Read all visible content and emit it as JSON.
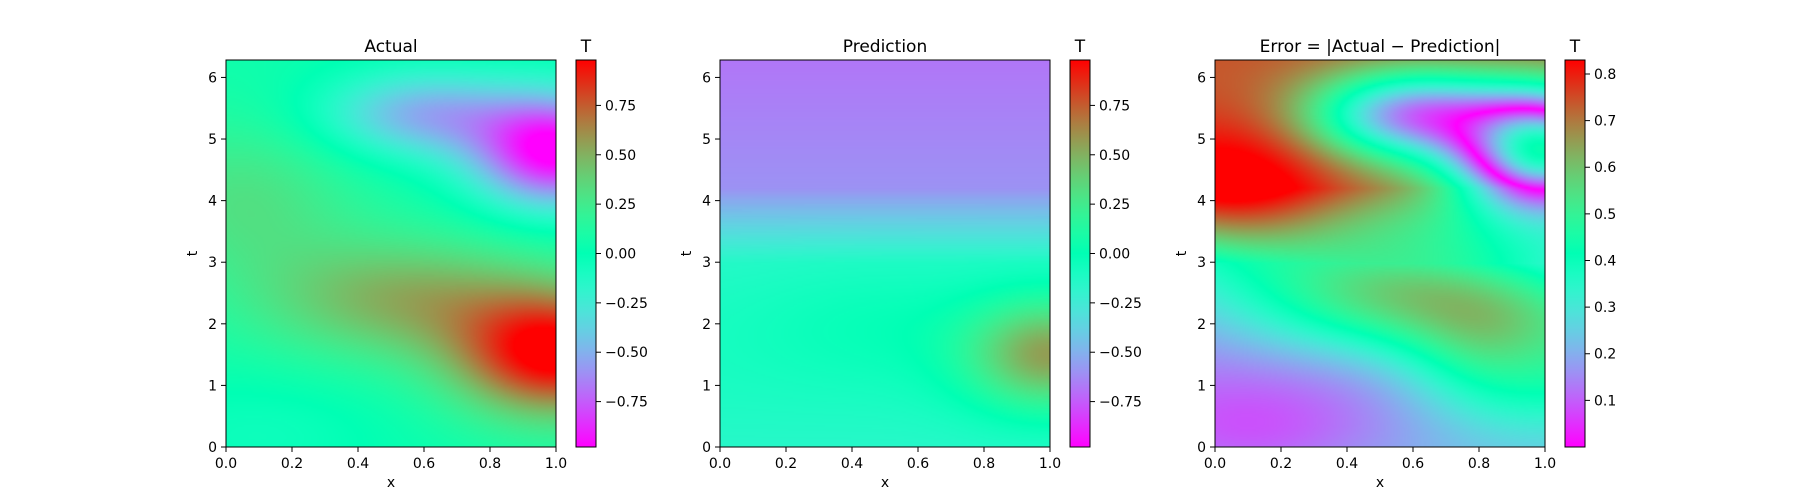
{
  "chart_data": [
    {
      "type": "heatmap",
      "title": "Actual",
      "xlabel": "x",
      "ylabel": "t",
      "xlim": [
        0,
        1
      ],
      "ylim": [
        0,
        6.283
      ],
      "xticks": [
        0.0,
        0.2,
        0.4,
        0.6,
        0.8,
        1.0
      ],
      "xtick_labels": [
        "0.0",
        "0.2",
        "0.4",
        "0.6",
        "0.8",
        "1.0"
      ],
      "yticks": [
        0,
        1,
        2,
        3,
        4,
        5,
        6
      ],
      "ytick_labels": [
        "0",
        "1",
        "2",
        "3",
        "4",
        "5",
        "6"
      ],
      "colormap": "rainbow",
      "colorbar": {
        "title": "T",
        "range": [
          -0.98,
          0.98
        ],
        "ticks": [
          -0.75,
          -0.5,
          -0.25,
          0.0,
          0.25,
          0.5,
          0.75
        ],
        "tick_labels": [
          "−0.75",
          "−0.50",
          "−0.25",
          "0.00",
          "0.25",
          "0.50",
          "0.75"
        ]
      }
    },
    {
      "type": "heatmap",
      "title": "Prediction",
      "xlabel": "x",
      "ylabel": "t",
      "xlim": [
        0,
        1
      ],
      "ylim": [
        0,
        6.283
      ],
      "xticks": [
        0.0,
        0.2,
        0.4,
        0.6,
        0.8,
        1.0
      ],
      "xtick_labels": [
        "0.0",
        "0.2",
        "0.4",
        "0.6",
        "0.8",
        "1.0"
      ],
      "yticks": [
        0,
        1,
        2,
        3,
        4,
        5,
        6
      ],
      "ytick_labels": [
        "0",
        "1",
        "2",
        "3",
        "4",
        "5",
        "6"
      ],
      "colormap": "rainbow",
      "colorbar": {
        "title": "T",
        "range": [
          -0.98,
          0.98
        ],
        "ticks": [
          -0.75,
          -0.5,
          -0.25,
          0.0,
          0.25,
          0.5,
          0.75
        ],
        "tick_labels": [
          "−0.75",
          "−0.50",
          "−0.25",
          "0.00",
          "0.25",
          "0.50",
          "0.75"
        ]
      }
    },
    {
      "type": "heatmap",
      "title": "Error = |Actual − Prediction|",
      "xlabel": "x",
      "ylabel": "t",
      "xlim": [
        0,
        1
      ],
      "ylim": [
        0,
        6.283
      ],
      "xticks": [
        0.0,
        0.2,
        0.4,
        0.6,
        0.8,
        1.0
      ],
      "xtick_labels": [
        "0.0",
        "0.2",
        "0.4",
        "0.6",
        "0.8",
        "1.0"
      ],
      "yticks": [
        0,
        1,
        2,
        3,
        4,
        5,
        6
      ],
      "ytick_labels": [
        "0",
        "1",
        "2",
        "3",
        "4",
        "5",
        "6"
      ],
      "colormap": "rainbow",
      "colorbar": {
        "title": "T",
        "range": [
          0.0,
          0.83
        ],
        "ticks": [
          0.1,
          0.2,
          0.3,
          0.4,
          0.5,
          0.6,
          0.7,
          0.8
        ],
        "tick_labels": [
          "0.1",
          "0.2",
          "0.3",
          "0.4",
          "0.5",
          "0.6",
          "0.7",
          "0.8"
        ]
      }
    }
  ]
}
